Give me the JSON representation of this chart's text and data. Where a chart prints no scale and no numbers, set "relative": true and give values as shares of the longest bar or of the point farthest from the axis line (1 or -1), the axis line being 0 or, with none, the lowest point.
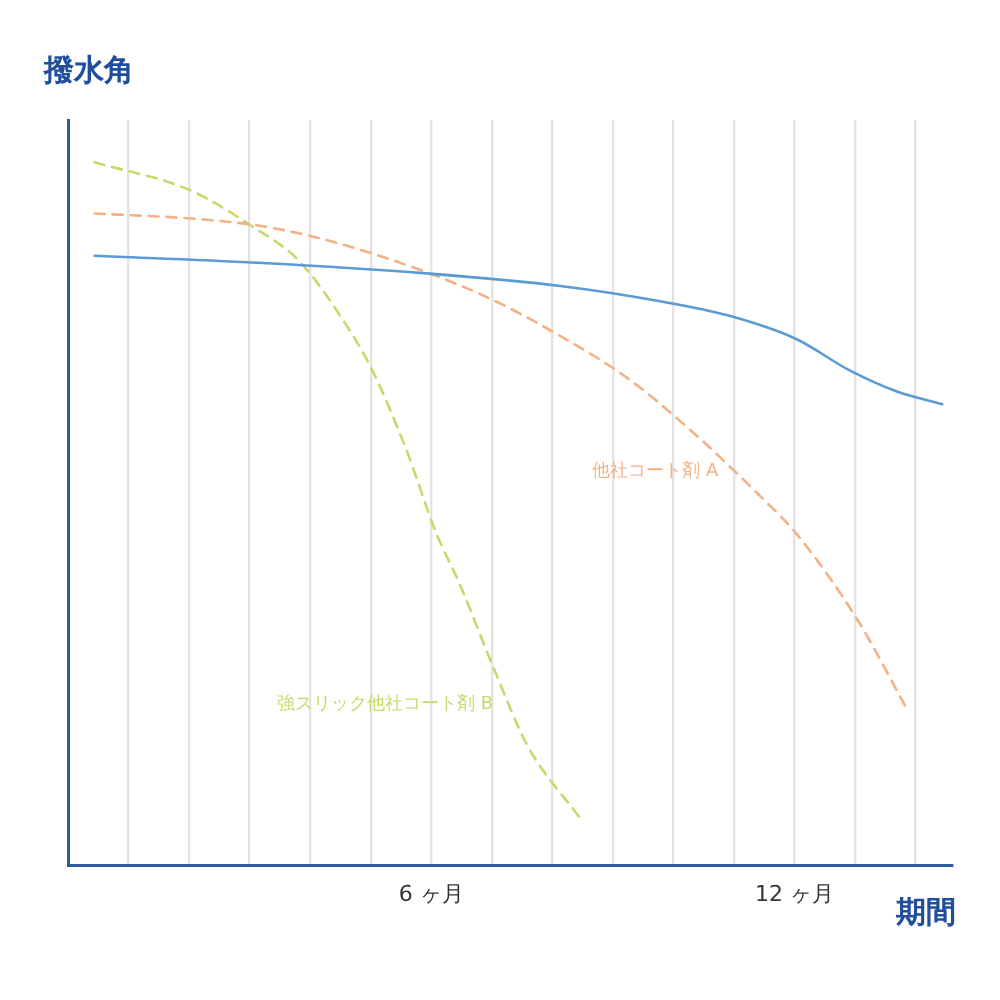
{
  "chart_data": {
    "type": "line",
    "ylabel": "撥水角",
    "xlabel": "期間",
    "relative": true,
    "grid": "x",
    "legend": false,
    "tick_labels": "x",
    "marker": "none",
    "xlim": [
      0,
      14.6
    ],
    "xticks": [
      {
        "value": 1,
        "label": null
      },
      {
        "value": 2,
        "label": null
      },
      {
        "value": 3,
        "label": null
      },
      {
        "value": 4,
        "label": null
      },
      {
        "value": 5,
        "label": null
      },
      {
        "value": 6,
        "label": "6 ヶ月"
      },
      {
        "value": 7,
        "label": null
      },
      {
        "value": 8,
        "label": null
      },
      {
        "value": 9,
        "label": null
      },
      {
        "value": 10,
        "label": null
      },
      {
        "value": 11,
        "label": null
      },
      {
        "value": 12,
        "label": "12 ヶ月"
      },
      {
        "value": 13,
        "label": null
      },
      {
        "value": 14,
        "label": null
      }
    ],
    "series": [
      {
        "color": "#5b9bd5",
        "line_style": "solid",
        "x": [
          0.44,
          3.13,
          5.91,
          8.13,
          9.8,
          10.91,
          12.02,
          12.91,
          13.69,
          14.44
        ],
        "values": [
          0.867,
          0.857,
          0.842,
          0.824,
          0.802,
          0.782,
          0.749,
          0.704,
          0.674,
          0.656
        ]
      },
      {
        "name": "他社コート剤 A",
        "color": "#f4b183",
        "line_style": "dashed",
        "x": [
          0.44,
          2.02,
          3.13,
          4.24,
          5.91,
          7.02,
          8.13,
          9.24,
          10.36,
          11.47,
          12.02,
          13.02,
          13.86
        ],
        "values": [
          0.927,
          0.92,
          0.91,
          0.89,
          0.844,
          0.804,
          0.753,
          0.693,
          0.613,
          0.522,
          0.473,
          0.352,
          0.222
        ]
      },
      {
        "name": "強スリック他社コート剤 B",
        "color": "#c9d86a",
        "line_style": "dashed",
        "x": [
          0.44,
          2.02,
          3.02,
          3.8,
          4.47,
          5.02,
          5.58,
          6.08,
          6.47,
          7.02,
          7.58,
          8.47
        ],
        "values": [
          1.0,
          0.96,
          0.91,
          0.861,
          0.785,
          0.705,
          0.593,
          0.473,
          0.4,
          0.283,
          0.172,
          0.066
        ]
      }
    ]
  }
}
